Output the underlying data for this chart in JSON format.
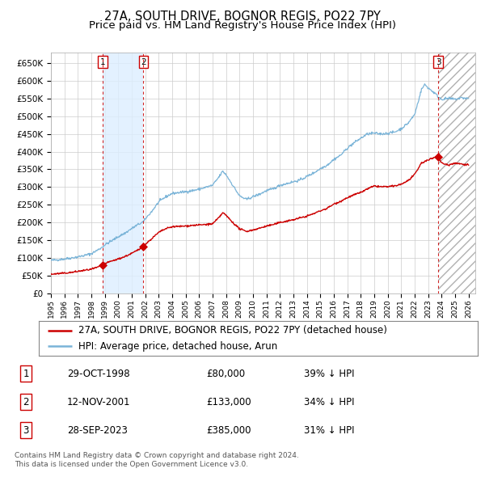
{
  "title": "27A, SOUTH DRIVE, BOGNOR REGIS, PO22 7PY",
  "subtitle": "Price paid vs. HM Land Registry's House Price Index (HPI)",
  "xlim_start": 1995.0,
  "xlim_end": 2026.5,
  "ylim_min": 0,
  "ylim_max": 680000,
  "yticks": [
    0,
    50000,
    100000,
    150000,
    200000,
    250000,
    300000,
    350000,
    400000,
    450000,
    500000,
    550000,
    600000,
    650000
  ],
  "ytick_labels": [
    "£0",
    "£50K",
    "£100K",
    "£150K",
    "£200K",
    "£250K",
    "£300K",
    "£350K",
    "£400K",
    "£450K",
    "£500K",
    "£550K",
    "£600K",
    "£650K"
  ],
  "sale_dates": [
    1998.831,
    2001.868,
    2023.747
  ],
  "sale_prices": [
    80000,
    133000,
    385000
  ],
  "sale_labels": [
    "1",
    "2",
    "3"
  ],
  "hpi_color": "#7ab4d8",
  "sale_color": "#cc0000",
  "vline_color": "#cc0000",
  "shade_color": "#ddeeff",
  "legend_sale_label": "27A, SOUTH DRIVE, BOGNOR REGIS, PO22 7PY (detached house)",
  "legend_hpi_label": "HPI: Average price, detached house, Arun",
  "table_rows": [
    [
      "1",
      "29-OCT-1998",
      "£80,000",
      "39% ↓ HPI"
    ],
    [
      "2",
      "12-NOV-2001",
      "£133,000",
      "34% ↓ HPI"
    ],
    [
      "3",
      "28-SEP-2023",
      "£385,000",
      "31% ↓ HPI"
    ]
  ],
  "footnote": "Contains HM Land Registry data © Crown copyright and database right 2024.\nThis data is licensed under the Open Government Licence v3.0.",
  "title_fontsize": 10.5,
  "subtitle_fontsize": 9.5,
  "tick_fontsize": 7.5,
  "legend_fontsize": 8.5,
  "table_fontsize": 8.5,
  "footnote_fontsize": 6.5
}
